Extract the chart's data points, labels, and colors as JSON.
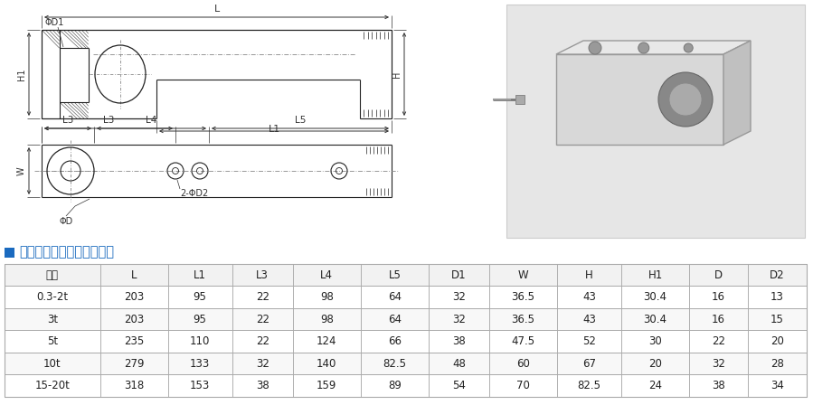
{
  "title": "悬臂梁式传感器标准尺寸表",
  "title_marker_color": "#1a6abf",
  "table_header": [
    "规格",
    "L",
    "L1",
    "L3",
    "L4",
    "L5",
    "D1",
    "W",
    "H",
    "H1",
    "D",
    "D2"
  ],
  "table_rows": [
    [
      "0.3-2t",
      "203",
      "95",
      "22",
      "98",
      "64",
      "32",
      "36.5",
      "43",
      "30.4",
      "16",
      "13"
    ],
    [
      "3t",
      "203",
      "95",
      "22",
      "98",
      "64",
      "32",
      "36.5",
      "43",
      "30.4",
      "16",
      "15"
    ],
    [
      "5t",
      "235",
      "110",
      "22",
      "124",
      "66",
      "38",
      "47.5",
      "52",
      "30",
      "22",
      "20"
    ],
    [
      "10t",
      "279",
      "133",
      "32",
      "140",
      "82.5",
      "48",
      "60",
      "67",
      "20",
      "32",
      "28"
    ],
    [
      "15-20t",
      "318",
      "153",
      "38",
      "159",
      "89",
      "54",
      "70",
      "82.5",
      "24",
      "38",
      "34"
    ]
  ],
  "header_bg": "#f2f2f2",
  "row_bg_alt": "#f8f8f8",
  "row_bg_norm": "#ffffff",
  "grid_color": "#bbbbbb",
  "text_color": "#222222",
  "border_color": "#aaaaaa",
  "bg_color": "#ffffff",
  "draw_color": "#222222",
  "dim_color": "#333333",
  "dash_color": "#888888",
  "hatch_color": "#444444",
  "photo_bg": "#e8e8e8",
  "photo_border": "#cccccc"
}
